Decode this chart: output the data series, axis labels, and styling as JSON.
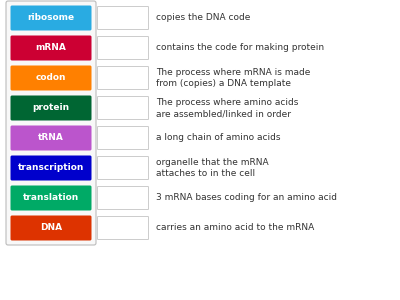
{
  "terms": [
    "ribosome",
    "mRNA",
    "codon",
    "protein",
    "tRNA",
    "transcription",
    "translation",
    "DNA"
  ],
  "term_colors": [
    "#29ABE2",
    "#CC0033",
    "#FF8000",
    "#006633",
    "#BB55CC",
    "#0000CC",
    "#00AA66",
    "#DD3300"
  ],
  "definitions": [
    "copies the DNA code",
    "contains the code for making protein",
    "The process where mRNA is made\nfrom (copies) a DNA template",
    "The process where amino acids\nare assembled/linked in order",
    "a long chain of amino acids",
    "organelle that the mRNA\nattaches to in the cell",
    "3 mRNA bases coding for an amino acid",
    "carries an amino acid to the mRNA"
  ],
  "background_color": "#FFFFFF",
  "outer_border_color": "#BBBBBB",
  "outer_bg_color": "#F8F8F8",
  "text_color_term": "#FFFFFF",
  "text_color_def": "#333333",
  "blank_border_color": "#CCCCCC",
  "term_font": 6.5,
  "def_font": 6.5
}
